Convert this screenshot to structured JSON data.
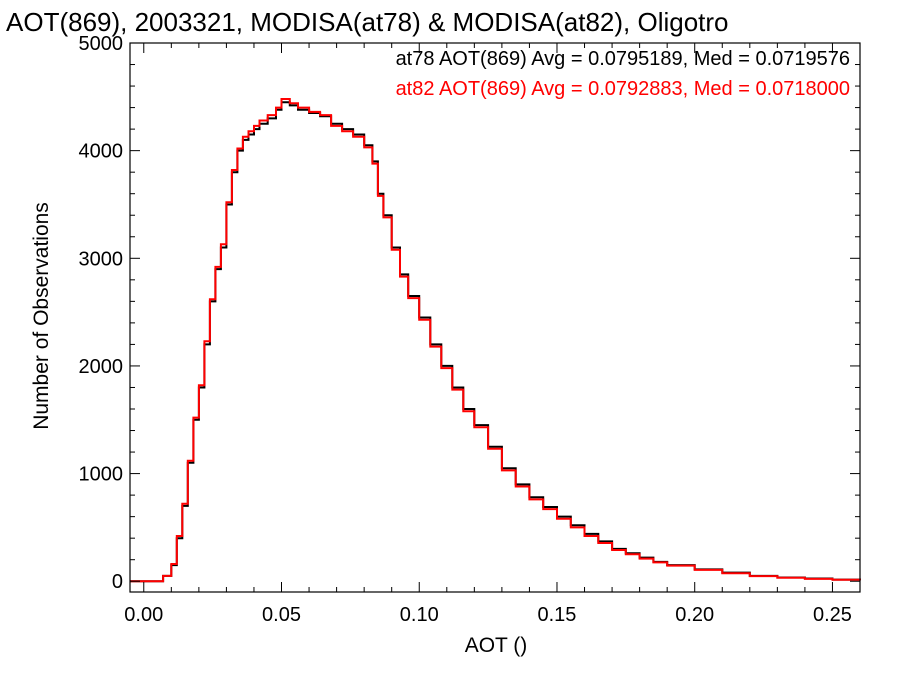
{
  "chart_data": {
    "type": "line",
    "title": "AOT(869), 2003321, MODISA(at78) & MODISA(at82), Oligotro",
    "xlabel": "AOT ()",
    "ylabel": "Number of Observations",
    "xlim": [
      -0.005,
      0.26
    ],
    "ylim": [
      -100,
      5000
    ],
    "x_ticks": [
      "0.00",
      "0.05",
      "0.10",
      "0.15",
      "0.20",
      "0.25"
    ],
    "y_ticks": [
      "0",
      "1000",
      "2000",
      "3000",
      "4000",
      "5000"
    ],
    "legend_position": "top-right",
    "annotations": [
      {
        "text": "at78 AOT(869) Avg = 0.0795189, Med = 0.0719576",
        "color": "#000000"
      },
      {
        "text": "at82 AOT(869) Avg = 0.0792883, Med = 0.0718000",
        "color": "#ff0000"
      }
    ],
    "series": [
      {
        "color": "#000000",
        "x": [
          -0.005,
          0.005,
          0.007,
          0.01,
          0.012,
          0.014,
          0.016,
          0.018,
          0.02,
          0.022,
          0.024,
          0.026,
          0.028,
          0.03,
          0.032,
          0.034,
          0.036,
          0.038,
          0.04,
          0.042,
          0.045,
          0.048,
          0.05,
          0.053,
          0.056,
          0.06,
          0.064,
          0.068,
          0.072,
          0.076,
          0.08,
          0.083,
          0.085,
          0.087,
          0.09,
          0.093,
          0.096,
          0.1,
          0.104,
          0.108,
          0.112,
          0.116,
          0.12,
          0.125,
          0.13,
          0.135,
          0.14,
          0.145,
          0.15,
          0.155,
          0.16,
          0.165,
          0.17,
          0.175,
          0.18,
          0.185,
          0.19,
          0.2,
          0.21,
          0.22,
          0.23,
          0.24,
          0.25,
          0.26
        ],
        "y": [
          0,
          0,
          50,
          150,
          400,
          700,
          1100,
          1500,
          1800,
          2200,
          2600,
          2900,
          3100,
          3500,
          3800,
          4000,
          4100,
          4150,
          4200,
          4250,
          4300,
          4380,
          4450,
          4420,
          4380,
          4350,
          4320,
          4250,
          4200,
          4150,
          4050,
          3900,
          3600,
          3400,
          3100,
          2850,
          2650,
          2450,
          2200,
          2000,
          1800,
          1600,
          1450,
          1250,
          1050,
          900,
          780,
          690,
          600,
          520,
          440,
          370,
          300,
          260,
          220,
          180,
          150,
          110,
          80,
          50,
          35,
          25,
          15,
          10
        ]
      },
      {
        "color": "#ff0000",
        "x": [
          -0.005,
          0.005,
          0.007,
          0.01,
          0.012,
          0.014,
          0.016,
          0.018,
          0.02,
          0.022,
          0.024,
          0.026,
          0.028,
          0.03,
          0.032,
          0.034,
          0.036,
          0.038,
          0.04,
          0.042,
          0.045,
          0.048,
          0.05,
          0.053,
          0.056,
          0.06,
          0.064,
          0.068,
          0.072,
          0.076,
          0.08,
          0.083,
          0.085,
          0.087,
          0.09,
          0.093,
          0.096,
          0.1,
          0.104,
          0.108,
          0.112,
          0.116,
          0.12,
          0.125,
          0.13,
          0.135,
          0.14,
          0.145,
          0.15,
          0.155,
          0.16,
          0.165,
          0.17,
          0.175,
          0.18,
          0.185,
          0.19,
          0.2,
          0.21,
          0.22,
          0.23,
          0.24,
          0.25,
          0.26
        ],
        "y": [
          0,
          0,
          50,
          160,
          420,
          720,
          1120,
          1520,
          1820,
          2230,
          2620,
          2920,
          3130,
          3520,
          3820,
          4020,
          4130,
          4180,
          4230,
          4280,
          4330,
          4400,
          4480,
          4440,
          4400,
          4360,
          4330,
          4230,
          4180,
          4130,
          4030,
          3880,
          3580,
          3380,
          3080,
          2830,
          2630,
          2430,
          2180,
          1980,
          1780,
          1580,
          1430,
          1230,
          1030,
          880,
          760,
          670,
          580,
          500,
          420,
          355,
          290,
          250,
          210,
          175,
          145,
          105,
          75,
          48,
          33,
          22,
          14,
          9
        ]
      }
    ]
  }
}
